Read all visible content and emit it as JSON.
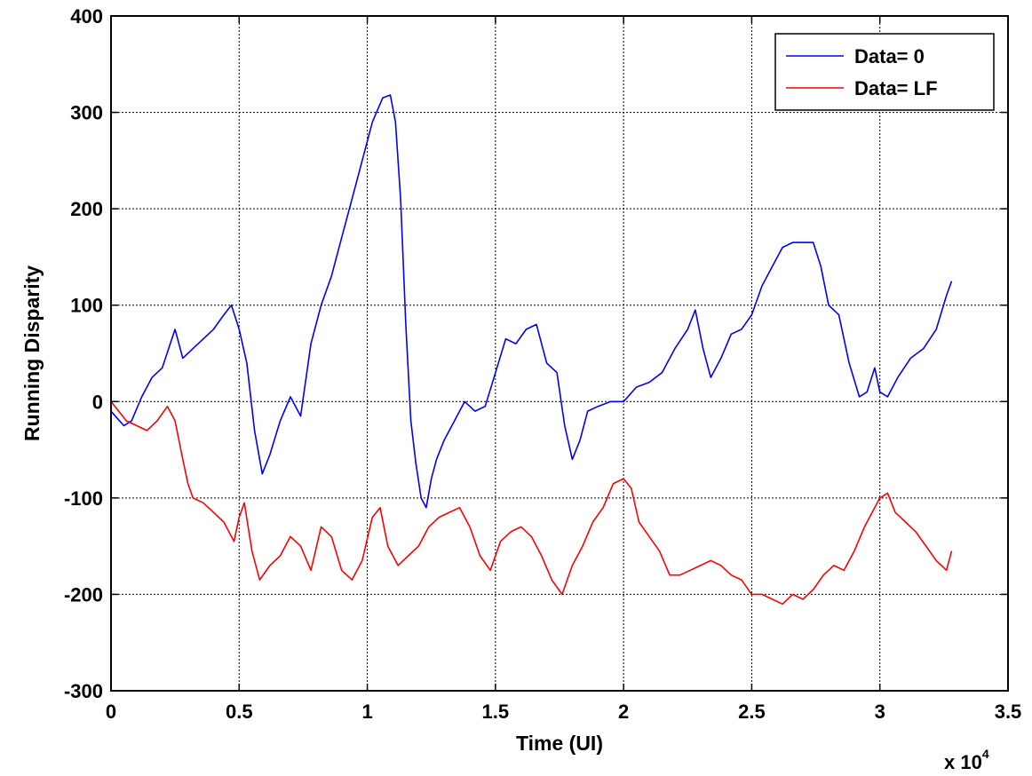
{
  "chart_data": {
    "type": "line",
    "xlabel": "Time (UI)",
    "ylabel": "Running Disparity",
    "x_multiplier_label": "x 10",
    "x_multiplier_exponent": "4",
    "xlim": [
      0,
      3.5
    ],
    "ylim": [
      -300,
      400
    ],
    "x_ticks": [
      0,
      0.5,
      1,
      1.5,
      2,
      2.5,
      3,
      3.5
    ],
    "x_tick_labels": [
      "0",
      "0.5",
      "1",
      "1.5",
      "2",
      "2.5",
      "3",
      "3.5"
    ],
    "y_ticks": [
      -300,
      -200,
      -100,
      0,
      100,
      200,
      300,
      400
    ],
    "y_tick_labels": [
      "-300",
      "-200",
      "-100",
      "0",
      "100",
      "200",
      "300",
      "400"
    ],
    "grid": true,
    "legend_position": "top-right",
    "series": [
      {
        "name": "Data= 0",
        "color": "#0000ff",
        "x": [
          0,
          0.05,
          0.08,
          0.12,
          0.16,
          0.2,
          0.25,
          0.28,
          0.32,
          0.36,
          0.4,
          0.44,
          0.47,
          0.5,
          0.53,
          0.56,
          0.59,
          0.62,
          0.66,
          0.7,
          0.74,
          0.78,
          0.82,
          0.86,
          0.9,
          0.94,
          0.98,
          1.02,
          1.06,
          1.09,
          1.11,
          1.13,
          1.15,
          1.17,
          1.19,
          1.21,
          1.23,
          1.25,
          1.27,
          1.3,
          1.34,
          1.38,
          1.42,
          1.46,
          1.5,
          1.54,
          1.58,
          1.62,
          1.66,
          1.7,
          1.74,
          1.77,
          1.8,
          1.83,
          1.86,
          1.9,
          1.95,
          2.0,
          2.05,
          2.1,
          2.15,
          2.2,
          2.25,
          2.28,
          2.31,
          2.34,
          2.38,
          2.42,
          2.46,
          2.5,
          2.54,
          2.58,
          2.62,
          2.66,
          2.7,
          2.74,
          2.77,
          2.8,
          2.84,
          2.88,
          2.92,
          2.95,
          2.98,
          3.0,
          3.03,
          3.07,
          3.12,
          3.17,
          3.22,
          3.26,
          3.28
        ],
        "y": [
          -10,
          -25,
          -20,
          5,
          25,
          35,
          75,
          45,
          55,
          65,
          75,
          90,
          100,
          75,
          40,
          -30,
          -75,
          -55,
          -20,
          5,
          -15,
          60,
          100,
          130,
          170,
          210,
          250,
          290,
          315,
          318,
          290,
          210,
          80,
          -20,
          -65,
          -100,
          -110,
          -80,
          -60,
          -40,
          -20,
          0,
          -10,
          -5,
          30,
          65,
          60,
          75,
          80,
          40,
          30,
          -25,
          -60,
          -40,
          -10,
          -5,
          0,
          0,
          15,
          20,
          30,
          55,
          75,
          95,
          55,
          25,
          45,
          70,
          75,
          90,
          120,
          140,
          160,
          165,
          165,
          165,
          140,
          100,
          90,
          40,
          5,
          10,
          35,
          10,
          5,
          25,
          45,
          55,
          75,
          110,
          125
        ]
      },
      {
        "name": "Data= LF",
        "color": "#ff0000",
        "x": [
          0,
          0.03,
          0.06,
          0.1,
          0.14,
          0.18,
          0.22,
          0.25,
          0.28,
          0.3,
          0.32,
          0.36,
          0.4,
          0.44,
          0.48,
          0.5,
          0.52,
          0.55,
          0.58,
          0.62,
          0.66,
          0.7,
          0.74,
          0.78,
          0.82,
          0.86,
          0.9,
          0.94,
          0.98,
          1.02,
          1.05,
          1.08,
          1.12,
          1.16,
          1.2,
          1.24,
          1.28,
          1.32,
          1.36,
          1.4,
          1.44,
          1.48,
          1.52,
          1.56,
          1.6,
          1.64,
          1.68,
          1.72,
          1.76,
          1.8,
          1.84,
          1.88,
          1.92,
          1.96,
          2.0,
          2.03,
          2.06,
          2.1,
          2.14,
          2.18,
          2.22,
          2.26,
          2.3,
          2.34,
          2.38,
          2.42,
          2.46,
          2.5,
          2.54,
          2.58,
          2.62,
          2.66,
          2.7,
          2.74,
          2.78,
          2.82,
          2.86,
          2.9,
          2.94,
          2.98,
          3.0,
          3.03,
          3.06,
          3.1,
          3.14,
          3.18,
          3.22,
          3.26,
          3.28
        ],
        "y": [
          0,
          -10,
          -20,
          -25,
          -30,
          -20,
          -5,
          -20,
          -60,
          -85,
          -100,
          -105,
          -115,
          -125,
          -145,
          -120,
          -105,
          -155,
          -185,
          -170,
          -160,
          -140,
          -150,
          -175,
          -130,
          -140,
          -175,
          -185,
          -165,
          -120,
          -110,
          -150,
          -170,
          -160,
          -150,
          -130,
          -120,
          -115,
          -110,
          -130,
          -160,
          -175,
          -145,
          -135,
          -130,
          -140,
          -160,
          -185,
          -200,
          -170,
          -150,
          -125,
          -110,
          -85,
          -80,
          -90,
          -125,
          -140,
          -155,
          -180,
          -180,
          -175,
          -170,
          -165,
          -170,
          -180,
          -185,
          -200,
          -200,
          -205,
          -210,
          -200,
          -205,
          -195,
          -180,
          -170,
          -175,
          -155,
          -130,
          -110,
          -100,
          -95,
          -115,
          -125,
          -135,
          -150,
          -165,
          -175,
          -155
        ]
      }
    ]
  }
}
